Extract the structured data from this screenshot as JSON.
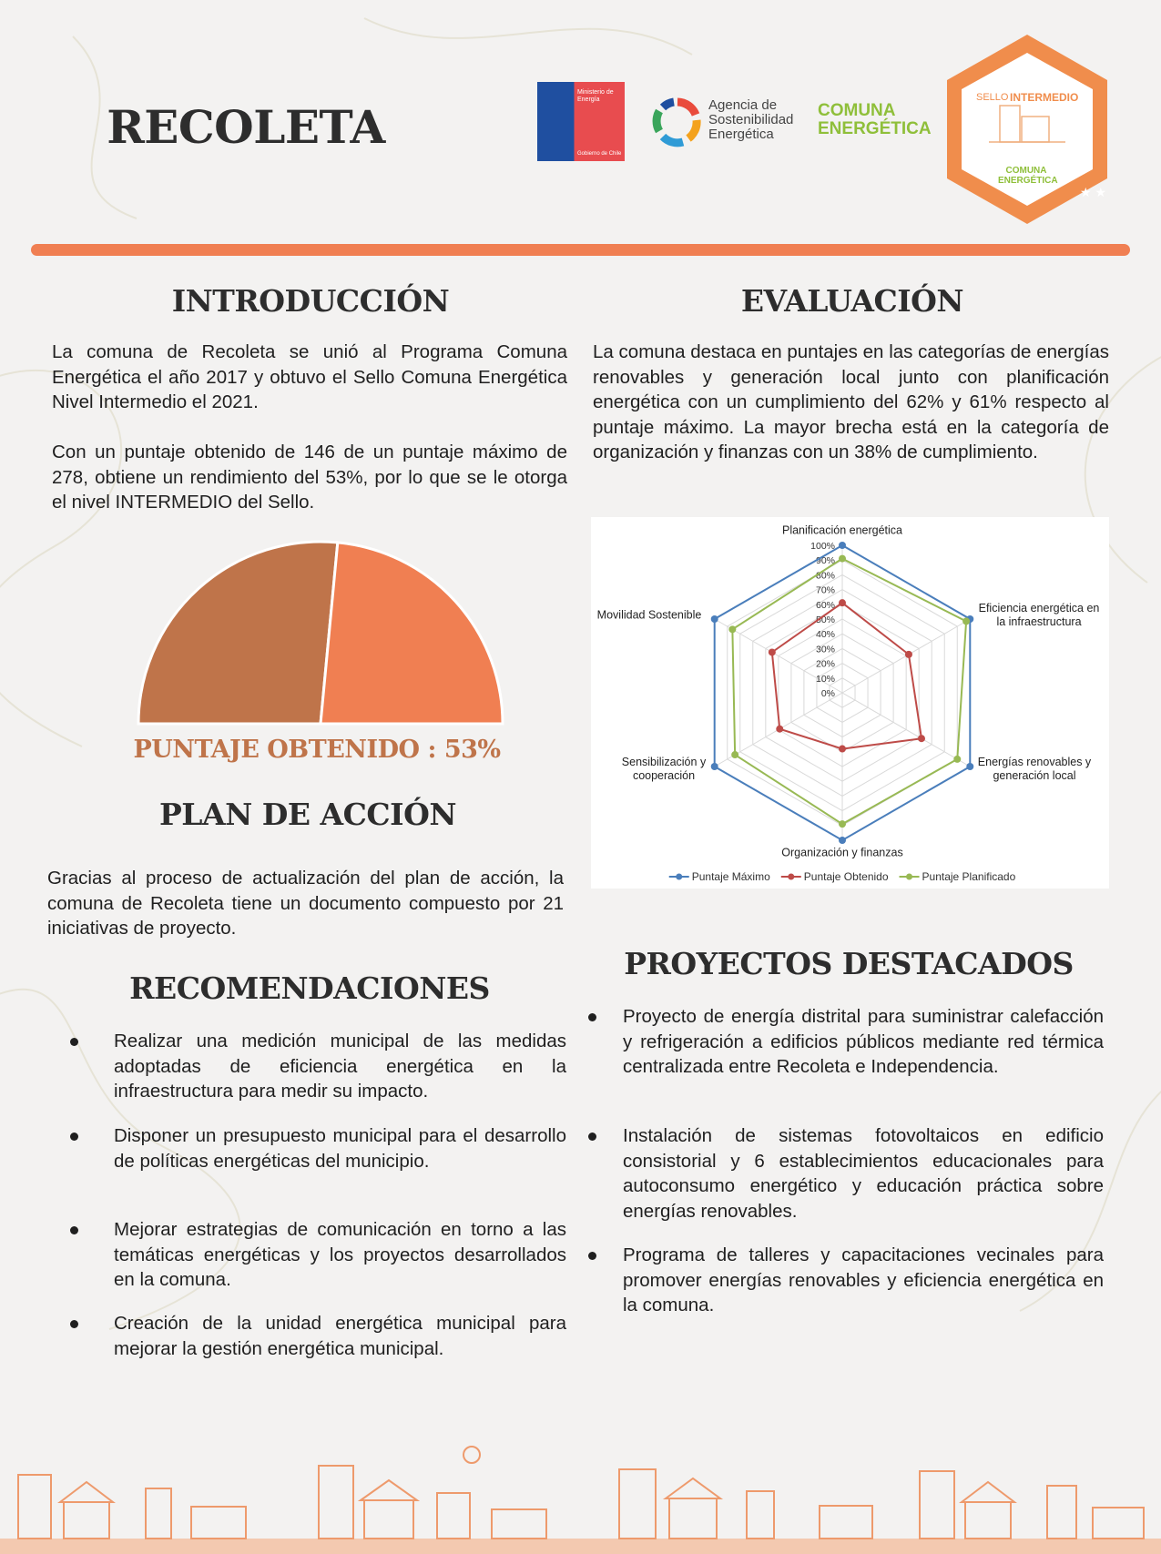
{
  "header": {
    "title": "RECOLETA",
    "logos": {
      "ministry": "Ministerio de Energía",
      "government": "Gobierno de Chile",
      "agency": "Agencia de Sostenibilidad Energética",
      "program": "COMUNA ENERGÉTICA"
    },
    "badge": {
      "prefix": "SELLO",
      "level": "INTERMEDIO",
      "program": "COMUNA ENERGÉTICA"
    }
  },
  "introduction": {
    "heading": "INTRODUCCIÓN",
    "paragraphs": [
      "La comuna de Recoleta se unió al Programa Comuna Energética el año 2017 y obtuvo el Sello Comuna Energética Nivel Intermedio el 2021.",
      "Con un puntaje obtenido de 146 de un puntaje máximo de 278, obtiene un rendimiento del 53%, por lo que se le otorga el nivel INTERMEDIO del Sello."
    ]
  },
  "evaluation": {
    "heading": "EVALUACIÓN",
    "text": "La comuna destaca en puntajes en las categorías de energías renovables y generación local junto con planificación energética con un cumplimiento del 62% y 61% respecto al puntaje máximo. La mayor brecha está en la categoría de organización y finanzas con un 38% de cumplimiento."
  },
  "action_plan": {
    "heading": "PLAN DE ACCIÓN",
    "text": "Gracias al proceso de actualización del plan de acción, la comuna de Recoleta tiene un documento compuesto por 21 iniciativas de proyecto."
  },
  "recommendations": {
    "heading": "RECOMENDACIONES",
    "items": [
      "Realizar una medición municipal de las medidas adoptadas de eficiencia energética en la infraestructura para medir su impacto.",
      "Disponer un presupuesto municipal para el desarrollo de políticas energéticas del municipio.",
      "Mejorar estrategias de comunicación en torno a las temáticas energéticas y los proyectos desarrollados en la comuna.",
      "Creación de la unidad energética municipal para mejorar la gestión energética municipal."
    ]
  },
  "projects": {
    "heading": "PROYECTOS DESTACADOS",
    "items": [
      "Proyecto de energía distrital para suministrar calefacción y refrigeración a edificios públicos mediante red térmica centralizada entre Recoleta e Independencia.",
      "Instalación de sistemas fotovoltaicos en edificio consistorial y 6 establecimientos educacionales para autoconsumo energético y educación práctica sobre energías renovables.",
      "Programa de talleres y capacitaciones vecinales para promover energías renovables y eficiencia energética en la comuna."
    ]
  },
  "chart_data": [
    {
      "type": "gauge",
      "title": "PUNTAJE OBTENIDO : 53%",
      "values": [
        53,
        47
      ],
      "colors": [
        "#bf744a",
        "#f07f52"
      ]
    },
    {
      "type": "radar",
      "categories": [
        "Planificación energética",
        "Eficiencia energética en la infraestructura",
        "Energías renovables y generación local",
        "Organización y finanzas",
        "Sensibilización y cooperación",
        "Movilidad Sostenible"
      ],
      "series": [
        {
          "name": "Puntaje Máximo",
          "color": "#4a7ebb",
          "values": [
            100,
            100,
            100,
            100,
            100,
            100
          ]
        },
        {
          "name": "Puntaje Obtenido",
          "color": "#be4b48",
          "values": [
            61,
            52,
            62,
            38,
            49,
            55
          ]
        },
        {
          "name": "Puntaje Planificado",
          "color": "#98b954",
          "values": [
            91,
            97,
            90,
            89,
            84,
            86
          ]
        }
      ],
      "ylim": [
        0,
        100
      ],
      "yticks": [
        {
          "value": 0,
          "label": "0%"
        },
        {
          "value": 10,
          "label": "10%"
        },
        {
          "value": 20,
          "label": "20%"
        },
        {
          "value": 30,
          "label": "30%"
        },
        {
          "value": 40,
          "label": "40%"
        },
        {
          "value": 50,
          "label": "50%"
        },
        {
          "value": 60,
          "label": "60%"
        },
        {
          "value": 70,
          "label": "70%"
        },
        {
          "value": 80,
          "label": "80%"
        },
        {
          "value": 90,
          "label": "90%"
        },
        {
          "value": 100,
          "label": "100%"
        }
      ],
      "grid": true,
      "legend": "bottom"
    }
  ]
}
